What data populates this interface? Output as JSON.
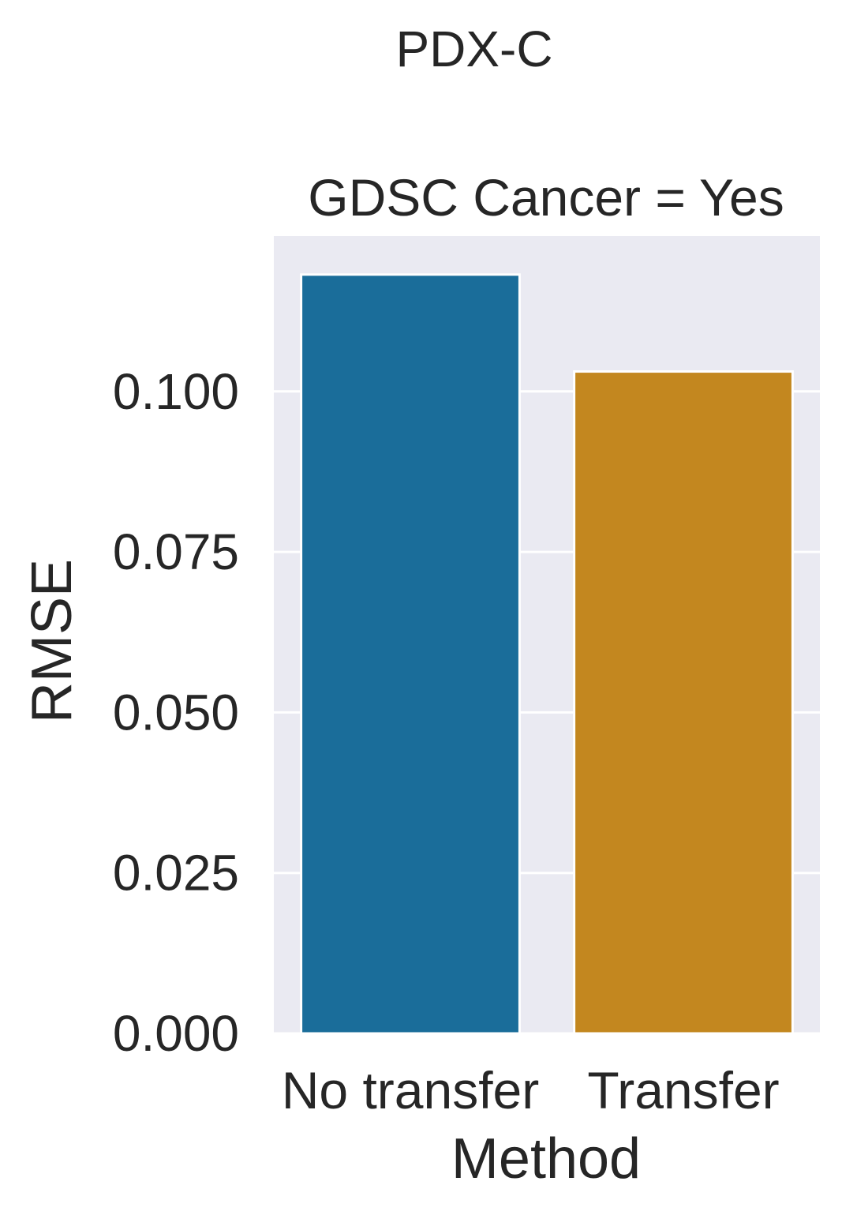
{
  "chart_data": {
    "type": "bar",
    "suptitle": "PDX-C",
    "title": "GDSC Cancer = Yes",
    "xlabel": "Method",
    "ylabel": "RMSE",
    "categories": [
      "No transfer",
      "Transfer"
    ],
    "values": [
      0.1182,
      0.1031
    ],
    "colors": [
      "#1a6d9a",
      "#c3871f"
    ],
    "ylim": [
      0,
      0.1242
    ],
    "yticks": [
      0.0,
      0.025,
      0.05,
      0.075,
      0.1
    ],
    "ytick_labels": [
      "0.000",
      "0.025",
      "0.050",
      "0.075",
      "0.100"
    ],
    "grid": true,
    "legend": "none",
    "background_color": "#eaeaf2",
    "grid_color": "#ffffff"
  }
}
